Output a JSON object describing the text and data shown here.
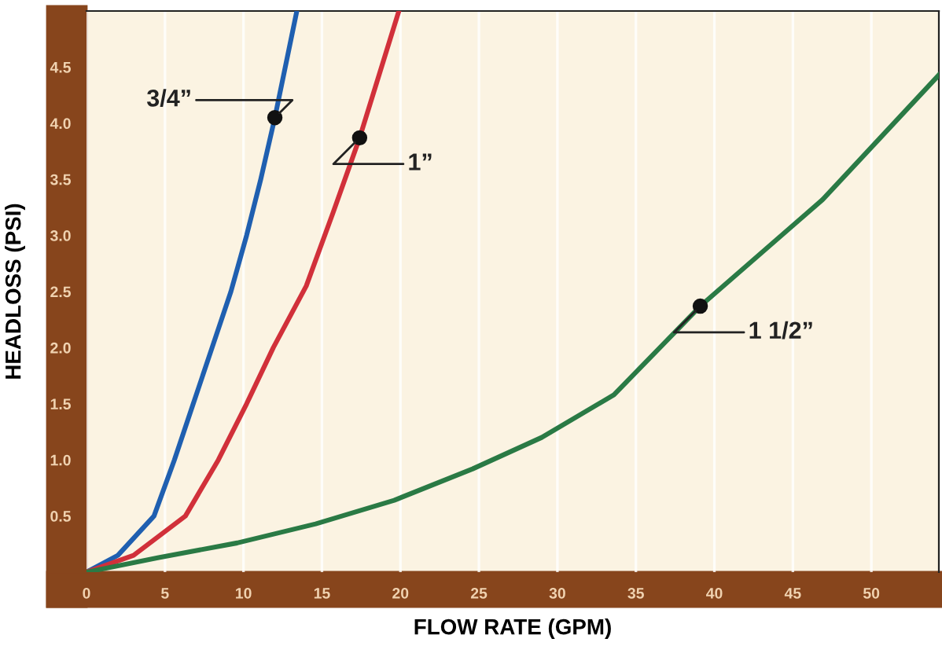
{
  "chart_data": {
    "type": "line",
    "xlabel": "FLOW RATE (GPM)",
    "ylabel": "HEADLOSS (PSI)",
    "xlim": [
      0,
      54.3
    ],
    "ylim": [
      0,
      5
    ],
    "xticks": [
      0,
      5,
      10,
      15,
      20,
      25,
      30,
      35,
      40,
      45,
      50
    ],
    "yticks": [
      0.5,
      {
        "value": 1,
        "label": "1.0"
      },
      1.5,
      {
        "value": 2,
        "label": "2.0"
      },
      2.5,
      {
        "value": 3,
        "label": "3.0"
      },
      3.5,
      {
        "value": 4,
        "label": "4.0"
      },
      4.5
    ],
    "grid": "x",
    "legend": false,
    "marker": "none",
    "line_style": "solid",
    "series": [
      {
        "color": "#1f5fb0",
        "x": [
          0,
          2,
          4.3,
          5.6,
          6.8,
          8.0,
          9.2,
          10.2,
          11.1,
          12,
          13.4
        ],
        "values": [
          0,
          0.15,
          0.5,
          1.0,
          1.5,
          2.0,
          2.5,
          3.0,
          3.5,
          4.05,
          5.0
        ]
      },
      {
        "color": "#d1303a",
        "x": [
          0,
          3,
          6.3,
          8.4,
          10.2,
          11.9,
          14.0,
          15.7,
          17.4,
          19.9
        ],
        "values": [
          0,
          0.15,
          0.5,
          1.0,
          1.5,
          2.0,
          2.55,
          3.2,
          3.87,
          5.0
        ]
      },
      {
        "color": "#2a7a45",
        "x": [
          0,
          4.6,
          9.6,
          14.6,
          19.6,
          24.6,
          29,
          33.6,
          39.1,
          46.9,
          54.3
        ],
        "values": [
          0,
          0.13,
          0.26,
          0.43,
          0.64,
          0.92,
          1.2,
          1.58,
          2.37,
          3.32,
          4.43
        ]
      }
    ],
    "annotations": [
      {
        "text": "3/4”",
        "x": 12,
        "y": 4.05
      },
      {
        "text": "1”",
        "x": 17.4,
        "y": 3.87
      },
      {
        "text": "1 1/2”",
        "x": 39.1,
        "y": 2.37
      }
    ]
  }
}
